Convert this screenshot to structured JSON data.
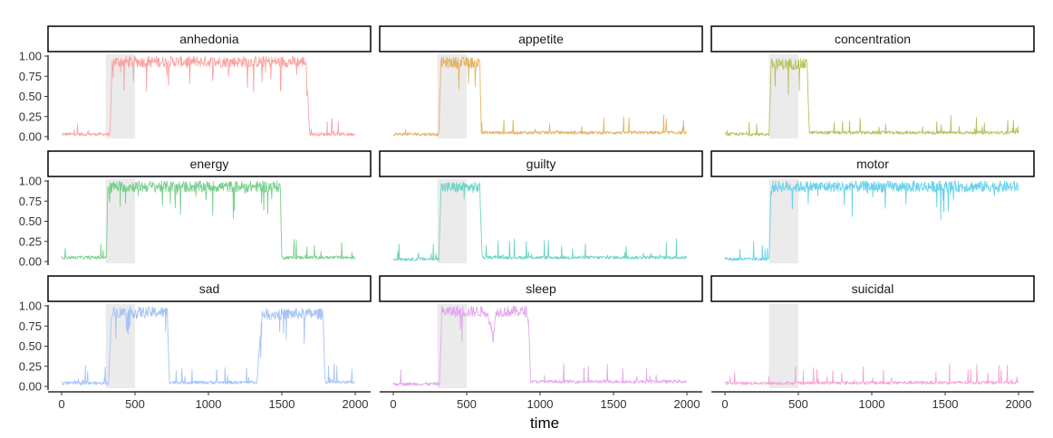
{
  "chart_data": {
    "type": "line",
    "xlabel": "time",
    "ylabel": "",
    "xlim": [
      0,
      2000
    ],
    "ylim": [
      0,
      1
    ],
    "x_ticks": [
      0,
      500,
      1000,
      1500,
      2000
    ],
    "x_tick_labels": [
      "0",
      "500",
      "1000",
      "1500",
      "2000"
    ],
    "y_ticks": [
      0,
      0.25,
      0.5,
      0.75,
      1
    ],
    "y_tick_labels": [
      "0.00",
      "0.25",
      "0.50",
      "0.75",
      "1.00"
    ],
    "shaded_interval": [
      300,
      500
    ],
    "shaded_color": "#ebebeb",
    "grid": false,
    "facets": [
      {
        "label": "anhedonia",
        "color": "#F8A5A5",
        "segments": [
          [
            0,
            0.03
          ],
          [
            330,
            0.03
          ],
          [
            345,
            0.93
          ],
          [
            1665,
            0.93
          ],
          [
            1690,
            0.03
          ],
          [
            2000,
            0.03
          ]
        ]
      },
      {
        "label": "appetite",
        "color": "#E2B465",
        "segments": [
          [
            0,
            0.03
          ],
          [
            310,
            0.03
          ],
          [
            325,
            0.92
          ],
          [
            590,
            0.92
          ],
          [
            600,
            0.05
          ],
          [
            2000,
            0.05
          ]
        ]
      },
      {
        "label": "concentration",
        "color": "#BAC05C",
        "segments": [
          [
            0,
            0.03
          ],
          [
            300,
            0.03
          ],
          [
            315,
            0.9
          ],
          [
            560,
            0.9
          ],
          [
            575,
            0.05
          ],
          [
            2000,
            0.05
          ]
        ]
      },
      {
        "label": "energy",
        "color": "#7AD08E",
        "segments": [
          [
            0,
            0.05
          ],
          [
            305,
            0.05
          ],
          [
            315,
            0.93
          ],
          [
            1490,
            0.93
          ],
          [
            1500,
            0.05
          ],
          [
            2000,
            0.05
          ]
        ]
      },
      {
        "label": "guilty",
        "color": "#6ED4C4",
        "segments": [
          [
            0,
            0.03
          ],
          [
            310,
            0.03
          ],
          [
            325,
            0.92
          ],
          [
            590,
            0.92
          ],
          [
            605,
            0.05
          ],
          [
            2000,
            0.05
          ]
        ]
      },
      {
        "label": "motor",
        "color": "#6AD2EA",
        "segments": [
          [
            0,
            0.03
          ],
          [
            300,
            0.03
          ],
          [
            315,
            0.93
          ],
          [
            2000,
            0.93
          ]
        ]
      },
      {
        "label": "sad",
        "color": "#A6C4F5",
        "segments": [
          [
            0,
            0.04
          ],
          [
            320,
            0.04
          ],
          [
            340,
            0.92
          ],
          [
            720,
            0.92
          ],
          [
            735,
            0.05
          ],
          [
            1330,
            0.05
          ],
          [
            1365,
            0.9
          ],
          [
            1780,
            0.9
          ],
          [
            1795,
            0.05
          ],
          [
            2000,
            0.05
          ]
        ]
      },
      {
        "label": "sleep",
        "color": "#E3A8EE",
        "segments": [
          [
            0,
            0.03
          ],
          [
            315,
            0.03
          ],
          [
            330,
            0.93
          ],
          [
            640,
            0.93
          ],
          [
            680,
            0.6
          ],
          [
            700,
            0.93
          ],
          [
            920,
            0.93
          ],
          [
            935,
            0.06
          ],
          [
            2000,
            0.06
          ]
        ]
      },
      {
        "label": "suicidal",
        "color": "#F4A4D6",
        "segments": [
          [
            0,
            0.04
          ],
          [
            2000,
            0.05
          ]
        ]
      }
    ]
  }
}
